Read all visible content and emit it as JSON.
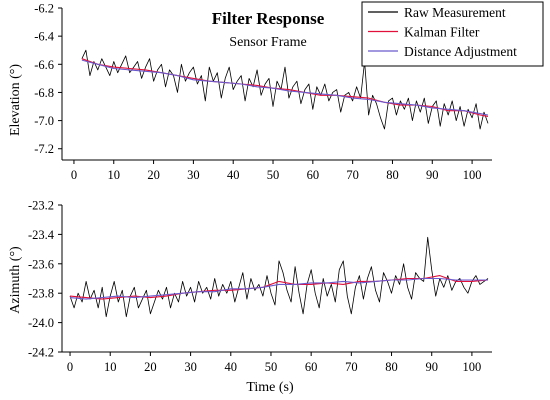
{
  "chart_data": [
    {
      "type": "line",
      "title": "Filter Response",
      "subtitle": "Sensor Frame",
      "xlabel": "",
      "ylabel": "Elevation (°)",
      "xlim": [
        -3,
        105
      ],
      "ylim": [
        -7.28,
        -6.2
      ],
      "x_ticks": [
        0,
        10,
        20,
        30,
        40,
        50,
        60,
        70,
        80,
        90,
        100
      ],
      "y_ticks": [
        -6.2,
        -6.4,
        -6.6,
        -6.8,
        -7.0,
        -7.2
      ],
      "x_tick_labels": [
        "0",
        "10",
        "20",
        "30",
        "40",
        "50",
        "60",
        "70",
        "80",
        "90",
        "100"
      ],
      "y_tick_labels": [
        "-6.2",
        "-6.4",
        "-6.6",
        "-6.8",
        "-7.0",
        "-7.2"
      ],
      "legend": {
        "placement": "top-right",
        "entries": [
          "Raw Measurement",
          "Kalman Filter",
          "Distance Adjustment"
        ]
      },
      "series": [
        {
          "name": "Raw Measurement",
          "color": "#000000",
          "x": [
            2,
            3,
            4,
            5,
            6,
            7,
            8,
            9,
            10,
            11,
            12,
            13,
            14,
            15,
            16,
            17,
            18,
            19,
            20,
            21,
            22,
            23,
            24,
            25,
            26,
            27,
            28,
            29,
            30,
            31,
            32,
            33,
            34,
            35,
            36,
            37,
            38,
            39,
            40,
            41,
            42,
            43,
            44,
            45,
            46,
            47,
            48,
            49,
            50,
            51,
            52,
            53,
            54,
            55,
            56,
            57,
            58,
            59,
            60,
            61,
            62,
            63,
            64,
            65,
            66,
            67,
            68,
            69,
            70,
            71,
            72,
            73,
            74,
            75,
            76,
            77,
            78,
            79,
            80,
            81,
            82,
            83,
            84,
            85,
            86,
            87,
            88,
            89,
            90,
            91,
            92,
            93,
            94,
            95,
            96,
            97,
            98,
            99,
            100,
            101,
            102,
            103,
            104
          ],
          "values": [
            -6.56,
            -6.5,
            -6.68,
            -6.58,
            -6.64,
            -6.56,
            -6.62,
            -6.68,
            -6.58,
            -6.66,
            -6.6,
            -6.54,
            -6.66,
            -6.62,
            -6.58,
            -6.7,
            -6.62,
            -6.56,
            -6.72,
            -6.64,
            -6.6,
            -6.76,
            -6.64,
            -6.68,
            -6.8,
            -6.6,
            -6.72,
            -6.66,
            -6.62,
            -6.74,
            -6.68,
            -6.86,
            -6.62,
            -6.72,
            -6.66,
            -6.84,
            -6.7,
            -6.62,
            -6.78,
            -6.72,
            -6.68,
            -6.86,
            -6.7,
            -6.76,
            -6.64,
            -6.82,
            -6.74,
            -6.7,
            -6.9,
            -6.72,
            -6.78,
            -6.62,
            -6.84,
            -6.76,
            -6.72,
            -6.88,
            -6.78,
            -6.74,
            -6.92,
            -6.76,
            -6.82,
            -6.74,
            -6.86,
            -6.8,
            -6.78,
            -6.94,
            -6.82,
            -6.8,
            -6.86,
            -6.76,
            -6.84,
            -6.58,
            -6.96,
            -6.82,
            -6.88,
            -6.98,
            -7.06,
            -6.86,
            -6.84,
            -6.96,
            -6.86,
            -6.92,
            -6.84,
            -7.0,
            -6.86,
            -6.94,
            -6.84,
            -7.02,
            -6.9,
            -6.86,
            -7.04,
            -6.88,
            -6.96,
            -6.86,
            -7.0,
            -6.9,
            -7.04,
            -6.92,
            -6.98,
            -6.88,
            -7.06,
            -6.94,
            -7.02
          ]
        },
        {
          "name": "Kalman Filter",
          "color": "#e0103a",
          "x": [
            2,
            6,
            10,
            14,
            18,
            22,
            26,
            30,
            34,
            38,
            42,
            46,
            50,
            54,
            58,
            62,
            66,
            70,
            74,
            78,
            82,
            86,
            90,
            94,
            98,
            102,
            104
          ],
          "values": [
            -6.56,
            -6.6,
            -6.62,
            -6.63,
            -6.64,
            -6.66,
            -6.68,
            -6.7,
            -6.72,
            -6.73,
            -6.74,
            -6.75,
            -6.77,
            -6.78,
            -6.8,
            -6.82,
            -6.82,
            -6.83,
            -6.84,
            -6.87,
            -6.89,
            -6.89,
            -6.9,
            -6.93,
            -6.93,
            -6.96,
            -6.97
          ]
        },
        {
          "name": "Distance Adjustment",
          "color": "#6a5acd",
          "x": [
            2,
            6,
            10,
            14,
            18,
            22,
            26,
            30,
            34,
            38,
            42,
            46,
            50,
            54,
            58,
            62,
            66,
            70,
            74,
            78,
            82,
            86,
            90,
            94,
            98,
            102,
            104
          ],
          "values": [
            -6.57,
            -6.6,
            -6.63,
            -6.64,
            -6.65,
            -6.66,
            -6.68,
            -6.71,
            -6.72,
            -6.73,
            -6.74,
            -6.76,
            -6.77,
            -6.79,
            -6.8,
            -6.81,
            -6.82,
            -6.84,
            -6.85,
            -6.87,
            -6.88,
            -6.89,
            -6.91,
            -6.92,
            -6.93,
            -6.95,
            -6.96
          ]
        }
      ]
    },
    {
      "type": "line",
      "title": "",
      "xlabel": "Time (s)",
      "ylabel": "Azimuth (°)",
      "xlim": [
        -2,
        105
      ],
      "ylim": [
        -24.2,
        -23.2
      ],
      "x_ticks": [
        0,
        10,
        20,
        30,
        40,
        50,
        60,
        70,
        80,
        90,
        100
      ],
      "y_ticks": [
        -23.2,
        -23.4,
        -23.6,
        -23.8,
        -24.0,
        -24.2
      ],
      "x_tick_labels": [
        "0",
        "10",
        "20",
        "30",
        "40",
        "50",
        "60",
        "70",
        "80",
        "90",
        "100"
      ],
      "y_tick_labels": [
        "-23.2",
        "-23.4",
        "-23.6",
        "-23.8",
        "-24.0",
        "-24.2"
      ],
      "series": [
        {
          "name": "Raw Measurement",
          "color": "#000000",
          "x": [
            0,
            1,
            2,
            3,
            4,
            5,
            6,
            7,
            8,
            9,
            10,
            11,
            12,
            13,
            14,
            15,
            16,
            17,
            18,
            19,
            20,
            21,
            22,
            23,
            24,
            25,
            26,
            27,
            28,
            29,
            30,
            31,
            32,
            33,
            34,
            35,
            36,
            37,
            38,
            39,
            40,
            41,
            42,
            43,
            44,
            45,
            46,
            47,
            48,
            49,
            50,
            51,
            52,
            53,
            54,
            55,
            56,
            57,
            58,
            59,
            60,
            61,
            62,
            63,
            64,
            65,
            66,
            67,
            68,
            69,
            70,
            71,
            72,
            73,
            74,
            75,
            76,
            77,
            78,
            79,
            80,
            81,
            82,
            83,
            84,
            85,
            86,
            87,
            88,
            89,
            90,
            91,
            92,
            93,
            94,
            95,
            96,
            97,
            98,
            99,
            100,
            101,
            102,
            103,
            104
          ],
          "values": [
            -23.82,
            -23.9,
            -23.8,
            -23.86,
            -23.72,
            -23.84,
            -23.78,
            -23.9,
            -23.76,
            -23.96,
            -23.82,
            -23.72,
            -23.86,
            -23.78,
            -23.96,
            -23.82,
            -23.76,
            -23.9,
            -23.84,
            -23.78,
            -23.94,
            -23.86,
            -23.78,
            -23.84,
            -23.76,
            -23.9,
            -23.8,
            -23.86,
            -23.72,
            -23.82,
            -23.76,
            -23.86,
            -23.72,
            -23.8,
            -23.76,
            -23.84,
            -23.7,
            -23.82,
            -23.74,
            -23.8,
            -23.72,
            -23.86,
            -23.76,
            -23.66,
            -23.84,
            -23.7,
            -23.78,
            -23.74,
            -23.82,
            -23.68,
            -23.8,
            -23.88,
            -23.58,
            -23.66,
            -23.78,
            -23.86,
            -23.62,
            -23.8,
            -23.94,
            -23.74,
            -23.64,
            -23.8,
            -23.9,
            -23.7,
            -23.82,
            -23.74,
            -23.86,
            -23.64,
            -23.58,
            -23.82,
            -23.94,
            -23.76,
            -23.68,
            -23.84,
            -23.7,
            -23.62,
            -23.78,
            -23.86,
            -23.66,
            -23.72,
            -23.8,
            -23.68,
            -23.74,
            -23.6,
            -23.76,
            -23.84,
            -23.66,
            -23.7,
            -23.72,
            -23.42,
            -23.64,
            -23.82,
            -23.7,
            -23.76,
            -23.68,
            -23.78,
            -23.72,
            -23.7,
            -23.76,
            -23.8,
            -23.72,
            -23.68,
            -23.74,
            -23.72,
            -23.7
          ]
        },
        {
          "name": "Kalman Filter",
          "color": "#e0103a",
          "x": [
            0,
            4,
            8,
            12,
            16,
            20,
            24,
            28,
            32,
            36,
            40,
            44,
            48,
            52,
            56,
            60,
            64,
            68,
            72,
            76,
            80,
            84,
            88,
            92,
            96,
            100,
            104
          ],
          "values": [
            -23.82,
            -23.83,
            -23.84,
            -23.83,
            -23.82,
            -23.83,
            -23.82,
            -23.8,
            -23.79,
            -23.78,
            -23.78,
            -23.77,
            -23.76,
            -23.72,
            -23.74,
            -23.74,
            -23.73,
            -23.74,
            -23.72,
            -23.72,
            -23.71,
            -23.7,
            -23.7,
            -23.68,
            -23.72,
            -23.72,
            -23.71
          ]
        },
        {
          "name": "Distance Adjustment",
          "color": "#6a5acd",
          "x": [
            0,
            4,
            8,
            12,
            16,
            20,
            24,
            28,
            32,
            36,
            40,
            44,
            48,
            52,
            56,
            60,
            64,
            68,
            72,
            76,
            80,
            84,
            88,
            92,
            96,
            100,
            104
          ],
          "values": [
            -23.83,
            -23.84,
            -23.83,
            -23.82,
            -23.83,
            -23.82,
            -23.81,
            -23.8,
            -23.79,
            -23.79,
            -23.77,
            -23.77,
            -23.76,
            -23.74,
            -23.74,
            -23.73,
            -23.73,
            -23.72,
            -23.73,
            -23.72,
            -23.71,
            -23.71,
            -23.7,
            -23.7,
            -23.71,
            -23.71,
            -23.71
          ]
        }
      ]
    }
  ]
}
